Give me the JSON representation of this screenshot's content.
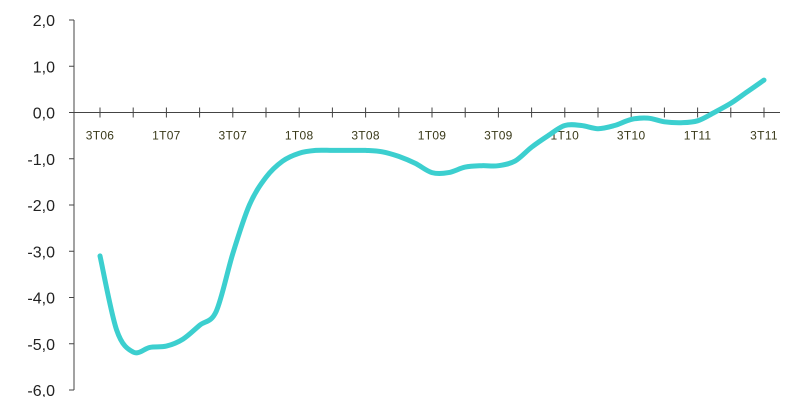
{
  "chart_data": {
    "type": "line",
    "title": "",
    "xlabel": "",
    "ylabel": "",
    "ylim": [
      -6.0,
      2.0
    ],
    "y_ticks": [
      "2,0",
      "1,0",
      "0,0",
      "-1,0",
      "-2,0",
      "-3,0",
      "-4,0",
      "-5,0",
      "-6,0"
    ],
    "categories": [
      "3T06",
      "1T07",
      "3T07",
      "1T08",
      "3T08",
      "1T09",
      "3T09",
      "1T10",
      "3T10",
      "1T11",
      "3T11"
    ],
    "line_color": "#3ccfcf",
    "x": [
      0,
      0.25,
      0.5,
      0.75,
      1,
      1.25,
      1.5,
      1.75,
      2,
      2.25,
      2.5,
      2.75,
      3,
      3.25,
      3.5,
      3.75,
      4,
      4.25,
      4.5,
      4.75,
      5,
      5.25,
      5.5,
      5.75,
      6,
      6.25,
      6.5,
      6.75,
      7,
      7.25,
      7.5,
      7.75,
      8,
      8.25,
      8.5,
      8.75,
      9,
      9.25,
      9.5,
      9.75,
      10
    ],
    "series": [
      {
        "values": [
          -3.1,
          -4.7,
          -5.18,
          -5.08,
          -5.05,
          -4.9,
          -4.6,
          -4.3,
          -3.05,
          -2.0,
          -1.4,
          -1.05,
          -0.88,
          -0.82,
          -0.82,
          -0.82,
          -0.82,
          -0.85,
          -0.95,
          -1.1,
          -1.3,
          -1.3,
          -1.18,
          -1.15,
          -1.15,
          -1.05,
          -0.75,
          -0.5,
          -0.28,
          -0.28,
          -0.35,
          -0.28,
          -0.15,
          -0.12,
          -0.2,
          -0.22,
          -0.18,
          0.0,
          0.2,
          0.45,
          0.7
        ]
      }
    ]
  }
}
